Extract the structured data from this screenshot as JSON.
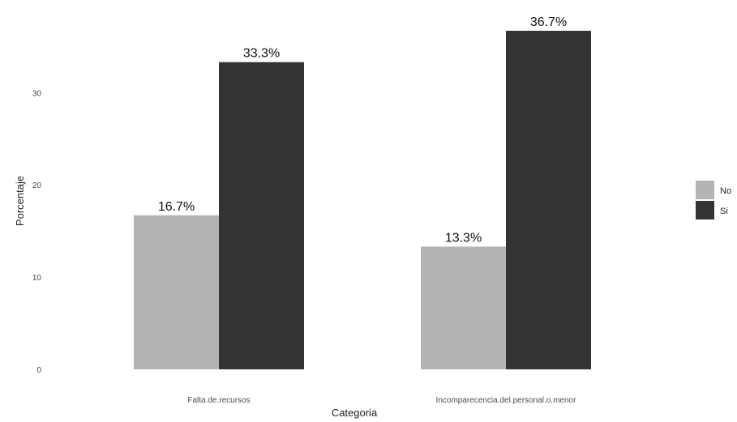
{
  "chart_data": {
    "type": "bar",
    "categories": [
      "Falta.de.recursos",
      "Incomparecencia.del.personal.o.menor"
    ],
    "series": [
      {
        "name": "No",
        "values": [
          16.7,
          13.3
        ],
        "labels": [
          "16.7%",
          "13.3%"
        ],
        "color": "#b3b3b3"
      },
      {
        "name": "Si",
        "values": [
          33.3,
          36.7
        ],
        "labels": [
          "33.3%",
          "36.7%"
        ],
        "color": "#333333"
      }
    ],
    "xlabel": "Categoria",
    "ylabel": "Porcentaje",
    "ylim": [
      0,
      36.7
    ],
    "yticks": [
      0,
      10,
      20,
      30
    ],
    "ytick_labels": [
      "0",
      "10",
      "20",
      "30"
    ],
    "grid": false,
    "legend_position": "right"
  }
}
